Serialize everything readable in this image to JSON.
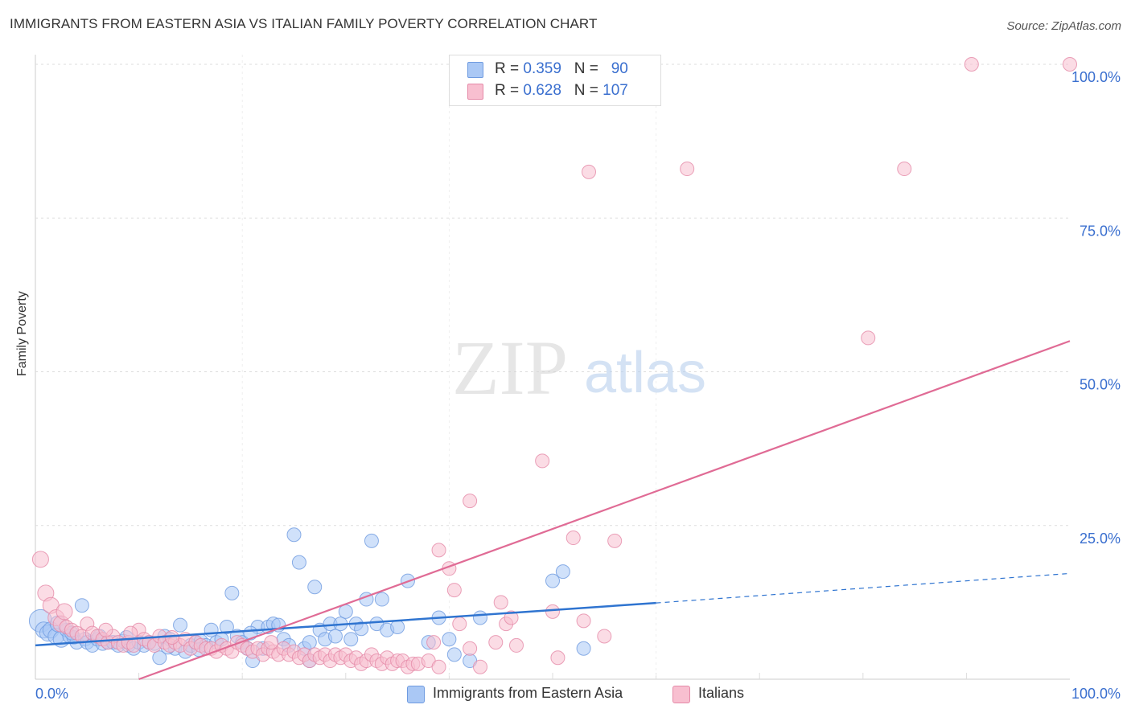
{
  "title": "IMMIGRANTS FROM EASTERN ASIA VS ITALIAN FAMILY POVERTY CORRELATION CHART",
  "source": "Source: ZipAtlas.com",
  "watermark": {
    "zip": "ZIP",
    "atlas": "atlas"
  },
  "legend_top": [
    {
      "r_label": "R = ",
      "r_value": "0.359",
      "n_label": "N = ",
      "n_value": "90",
      "color": "#aac8f5",
      "edge": "#6f9be0"
    },
    {
      "r_label": "R = ",
      "r_value": "0.628",
      "n_label": "N = ",
      "n_value": "107",
      "color": "#f8bfd0",
      "edge": "#e58aa8"
    }
  ],
  "chart_data": {
    "type": "scatter",
    "title": "IMMIGRANTS FROM EASTERN ASIA VS ITALIAN FAMILY POVERTY CORRELATION CHART",
    "xlabel": "",
    "ylabel": "Family Poverty",
    "xlim": [
      0,
      100
    ],
    "ylim": [
      0,
      100
    ],
    "x_tick_labels": [
      "0.0%",
      "100.0%"
    ],
    "y_ticks": [
      25,
      50,
      75,
      100
    ],
    "y_tick_labels": [
      "25.0%",
      "50.0%",
      "75.0%",
      "100.0%"
    ],
    "grid": true,
    "legend_position": "bottom",
    "series": [
      {
        "name": "Immigrants from Eastern Asia",
        "color": "#6f9be0",
        "fill": "#aac8f5",
        "regression": {
          "x0": 0,
          "y0": 5.5,
          "x1": 60,
          "y1": 12.4,
          "dash_x1": 100,
          "dash_y1": 17.2
        },
        "points": [
          [
            0.5,
            9.5
          ],
          [
            0.8,
            8
          ],
          [
            1.2,
            7.5
          ],
          [
            1.5,
            8
          ],
          [
            2,
            7
          ],
          [
            2.5,
            6.5
          ],
          [
            3,
            8
          ],
          [
            3.3,
            7
          ],
          [
            3.7,
            6.8
          ],
          [
            4,
            6
          ],
          [
            4.5,
            12
          ],
          [
            4.8,
            6.5
          ],
          [
            5,
            6
          ],
          [
            5.5,
            5.5
          ],
          [
            6,
            6.5
          ],
          [
            6.5,
            5.8
          ],
          [
            7,
            6
          ],
          [
            7.5,
            6
          ],
          [
            8,
            5.5
          ],
          [
            8.5,
            6.2
          ],
          [
            9,
            5.5
          ],
          [
            9.5,
            5
          ],
          [
            10,
            6
          ],
          [
            10.5,
            5.5
          ],
          [
            11,
            6
          ],
          [
            11.5,
            5.8
          ],
          [
            12,
            3.5
          ],
          [
            12.5,
            7
          ],
          [
            13,
            6.5
          ],
          [
            13.5,
            5
          ],
          [
            14,
            8.8
          ],
          [
            14.5,
            4.5
          ],
          [
            15,
            5.5
          ],
          [
            15.5,
            6
          ],
          [
            16,
            6.2
          ],
          [
            16.5,
            5.5
          ],
          [
            17,
            8
          ],
          [
            17.5,
            6
          ],
          [
            18,
            6.5
          ],
          [
            18.5,
            8.5
          ],
          [
            19,
            14
          ],
          [
            19.5,
            7
          ],
          [
            20,
            6
          ],
          [
            20.5,
            5
          ],
          [
            21,
            3
          ],
          [
            21.5,
            8.5
          ],
          [
            22,
            5
          ],
          [
            22.5,
            8.5
          ],
          [
            23,
            9
          ],
          [
            23.5,
            8.8
          ],
          [
            24,
            6.5
          ],
          [
            24.5,
            5.5
          ],
          [
            25,
            23.5
          ],
          [
            25.5,
            19
          ],
          [
            26,
            5
          ],
          [
            26.5,
            3
          ],
          [
            27,
            15
          ],
          [
            27.5,
            8
          ],
          [
            28,
            6.5
          ],
          [
            28.5,
            9
          ],
          [
            29,
            7
          ],
          [
            29.5,
            9
          ],
          [
            30,
            11
          ],
          [
            30.5,
            6.5
          ],
          [
            31,
            9
          ],
          [
            32,
            13
          ],
          [
            32.5,
            22.5
          ],
          [
            33,
            9
          ],
          [
            33.5,
            13
          ],
          [
            34,
            8
          ],
          [
            35,
            8.5
          ],
          [
            36,
            16
          ],
          [
            38,
            6
          ],
          [
            39,
            10
          ],
          [
            40,
            6.5
          ],
          [
            40.5,
            4
          ],
          [
            42,
            3
          ],
          [
            43,
            10
          ],
          [
            50,
            16
          ],
          [
            51,
            17.5
          ],
          [
            53,
            5
          ],
          [
            2.2,
            9
          ],
          [
            3.5,
            7.5
          ],
          [
            6.2,
            7
          ],
          [
            8.8,
            6.8
          ],
          [
            12.8,
            5.2
          ],
          [
            15.8,
            4.8
          ],
          [
            20.8,
            7.5
          ],
          [
            26.5,
            6
          ],
          [
            31.5,
            8.2
          ]
        ]
      },
      {
        "name": "Italians",
        "color": "#e58aa8",
        "fill": "#f8bfd0",
        "regression": {
          "x0": 10,
          "y0": 0,
          "x1": 100,
          "y1": 55
        },
        "points": [
          [
            0.5,
            19.5
          ],
          [
            1,
            14
          ],
          [
            1.5,
            12
          ],
          [
            2,
            10
          ],
          [
            2.5,
            9
          ],
          [
            3,
            8.5
          ],
          [
            3.5,
            8
          ],
          [
            4,
            7.5
          ],
          [
            4.5,
            7
          ],
          [
            5,
            9
          ],
          [
            5.5,
            7.5
          ],
          [
            6,
            7
          ],
          [
            6.5,
            6.5
          ],
          [
            7,
            6
          ],
          [
            7.5,
            7
          ],
          [
            8,
            6
          ],
          [
            8.5,
            5.5
          ],
          [
            9,
            6
          ],
          [
            9.5,
            5.5
          ],
          [
            10,
            8
          ],
          [
            10.5,
            6.5
          ],
          [
            11,
            6
          ],
          [
            11.5,
            5.5
          ],
          [
            12,
            7
          ],
          [
            12.5,
            6
          ],
          [
            13,
            5.5
          ],
          [
            13.5,
            6
          ],
          [
            14,
            5.5
          ],
          [
            14.5,
            6.5
          ],
          [
            15,
            5
          ],
          [
            15.5,
            6
          ],
          [
            16,
            5.5
          ],
          [
            16.5,
            5
          ],
          [
            17,
            5
          ],
          [
            17.5,
            4.5
          ],
          [
            18,
            5.5
          ],
          [
            18.5,
            5
          ],
          [
            19,
            4.5
          ],
          [
            19.5,
            6
          ],
          [
            20,
            5.5
          ],
          [
            20.5,
            5
          ],
          [
            21,
            4.5
          ],
          [
            21.5,
            5
          ],
          [
            22,
            4
          ],
          [
            22.5,
            5
          ],
          [
            23,
            4.5
          ],
          [
            23.5,
            4
          ],
          [
            24,
            5
          ],
          [
            24.5,
            4
          ],
          [
            25,
            4.5
          ],
          [
            25.5,
            3.5
          ],
          [
            26,
            4
          ],
          [
            26.5,
            3
          ],
          [
            27,
            4
          ],
          [
            27.5,
            3.5
          ],
          [
            28,
            4
          ],
          [
            28.5,
            3
          ],
          [
            29,
            4
          ],
          [
            29.5,
            3.5
          ],
          [
            30,
            4
          ],
          [
            30.5,
            3
          ],
          [
            31,
            3.5
          ],
          [
            31.5,
            2.5
          ],
          [
            32,
            3
          ],
          [
            32.5,
            4
          ],
          [
            33,
            3
          ],
          [
            33.5,
            2.5
          ],
          [
            34,
            3.5
          ],
          [
            34.5,
            2.5
          ],
          [
            35,
            3
          ],
          [
            35.5,
            3
          ],
          [
            36,
            2
          ],
          [
            36.5,
            2.5
          ],
          [
            37,
            2.5
          ],
          [
            38,
            3
          ],
          [
            38.5,
            6
          ],
          [
            39,
            2
          ],
          [
            40,
            18
          ],
          [
            40.5,
            14.5
          ],
          [
            41,
            9
          ],
          [
            42,
            5
          ],
          [
            43,
            2
          ],
          [
            45,
            12.5
          ],
          [
            45.5,
            9
          ],
          [
            46,
            10
          ],
          [
            46.5,
            5.5
          ],
          [
            49,
            35.5
          ],
          [
            50,
            11
          ],
          [
            52,
            23
          ],
          [
            53,
            9.5
          ],
          [
            53.5,
            82.5
          ],
          [
            55,
            7
          ],
          [
            56,
            22.5
          ],
          [
            63,
            83
          ],
          [
            80.5,
            55.5
          ],
          [
            84,
            83
          ],
          [
            90.5,
            100
          ],
          [
            100,
            100
          ],
          [
            42,
            29
          ],
          [
            39,
            21
          ],
          [
            44.5,
            6
          ],
          [
            50.5,
            3.5
          ],
          [
            2.8,
            11
          ],
          [
            6.8,
            8
          ],
          [
            9.2,
            7.5
          ],
          [
            13.2,
            6.8
          ],
          [
            22.8,
            6
          ]
        ]
      }
    ]
  }
}
